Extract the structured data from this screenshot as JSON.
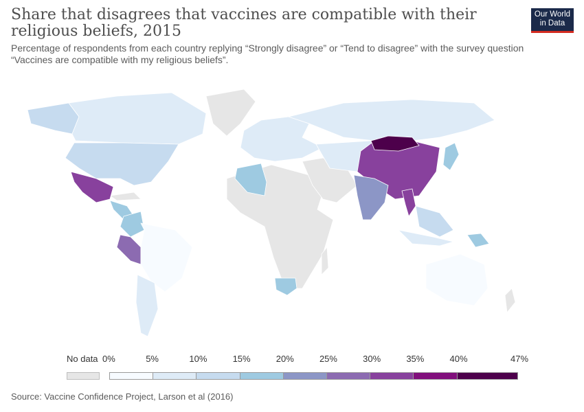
{
  "header": {
    "title": "Share that disagrees that vaccines are compatible with their religious beliefs, 2015",
    "subtitle": "Percentage of respondents from each country replying “Strongly disagree” or “Tend to disagree” with the survey question “Vaccines are compatible with my religious beliefs”."
  },
  "logo": {
    "line1": "Our World",
    "line2": "in Data"
  },
  "legend": {
    "nodata_label": "No data",
    "nodata_color": "#e6e6e6",
    "ticks": [
      "0%",
      "5%",
      "10%",
      "15%",
      "20%",
      "25%",
      "30%",
      "35%",
      "40%",
      "47%"
    ],
    "colors": [
      "#f7fbff",
      "#deebf7",
      "#c6dbef",
      "#9ecae1",
      "#8c96c6",
      "#8c6bb1",
      "#88419d",
      "#810f7c",
      "#4d004b"
    ]
  },
  "regions": [
    {
      "name": "Canada",
      "color": "#deebf7"
    },
    {
      "name": "Alaska",
      "color": "#c6dbef"
    },
    {
      "name": "United States",
      "color": "#c6dbef"
    },
    {
      "name": "Mexico",
      "color": "#88419d"
    },
    {
      "name": "Colombia",
      "color": "#9ecae1"
    },
    {
      "name": "Peru",
      "color": "#8c6bb1"
    },
    {
      "name": "Brazil",
      "color": "#f7fbff"
    },
    {
      "name": "Argentina",
      "color": "#deebf7"
    },
    {
      "name": "Algeria",
      "color": "#9ecae1"
    },
    {
      "name": "Russia",
      "color": "#deebf7"
    },
    {
      "name": "China",
      "color": "#88419d"
    },
    {
      "name": "Mongolia",
      "color": "#4d004b"
    },
    {
      "name": "India",
      "color": "#8c96c6"
    },
    {
      "name": "Thailand",
      "color": "#88419d"
    },
    {
      "name": "Australia",
      "color": "#f7fbff"
    },
    {
      "name": "South Africa",
      "color": "#9ecae1"
    },
    {
      "name": "Papua New Guinea",
      "color": "#9ecae1"
    }
  ],
  "source": "Source: Vaccine Confidence Project, Larson et al (2016)"
}
